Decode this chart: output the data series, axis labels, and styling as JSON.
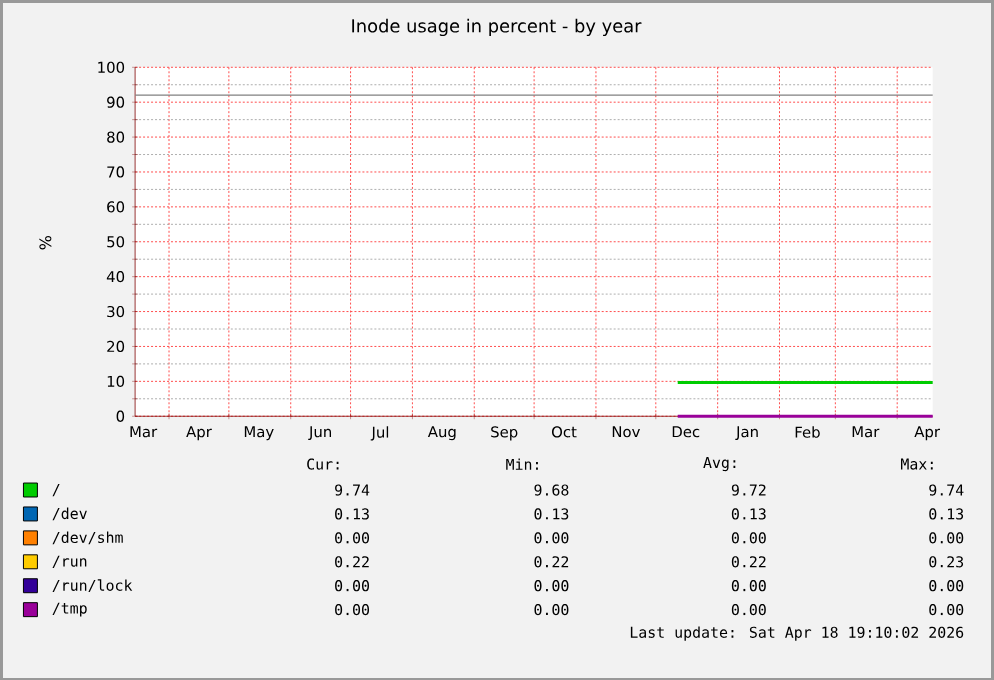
{
  "chart_data": {
    "type": "line",
    "title": "Inode usage in percent - by year",
    "ylabel": "%",
    "xlim": [
      "2025-03-15",
      "2026-04-18T19:10"
    ],
    "xticks": [
      {
        "value": "2025-03-19",
        "label": "Mar"
      },
      {
        "value": "2025-04-16",
        "label": "Apr"
      },
      {
        "value": "2025-05-16",
        "label": "May"
      },
      {
        "value": "2025-06-16",
        "label": "Jun"
      },
      {
        "value": "2025-07-16",
        "label": "Jul"
      },
      {
        "value": "2025-08-16",
        "label": "Aug"
      },
      {
        "value": "2025-09-16",
        "label": "Sep"
      },
      {
        "value": "2025-10-16",
        "label": "Oct"
      },
      {
        "value": "2025-11-16",
        "label": "Nov"
      },
      {
        "value": "2025-12-16",
        "label": "Dec"
      },
      {
        "value": "2026-01-16",
        "label": "Jan"
      },
      {
        "value": "2026-02-15",
        "label": "Feb"
      },
      {
        "value": "2026-03-16",
        "label": "Mar"
      },
      {
        "value": "2026-04-16",
        "label": "Apr"
      },
      {
        "value": "2025-04-01",
        "label": null
      },
      {
        "value": "2025-05-01",
        "label": null
      },
      {
        "value": "2025-06-01",
        "label": null
      },
      {
        "value": "2025-07-01",
        "label": null
      },
      {
        "value": "2025-08-01",
        "label": null
      },
      {
        "value": "2025-09-01",
        "label": null
      },
      {
        "value": "2025-10-01",
        "label": null
      },
      {
        "value": "2025-11-01",
        "label": null
      },
      {
        "value": "2025-12-01",
        "label": null
      },
      {
        "value": "2026-01-01",
        "label": null
      },
      {
        "value": "2026-02-01",
        "label": null
      },
      {
        "value": "2026-03-01",
        "label": null
      },
      {
        "value": "2026-04-01",
        "label": null
      }
    ],
    "ylim": [
      0,
      100
    ],
    "yticks": [
      0,
      10,
      20,
      30,
      40,
      50,
      60,
      70,
      80,
      90,
      100
    ],
    "grid": true,
    "legend": "bottom",
    "x": [
      "2025-12-12",
      "2026-04-18T19:10"
    ],
    "series": [
      {
        "name": "/",
        "color": "#00cc00",
        "values": [
          9.7,
          9.7
        ]
      },
      {
        "name": "/dev",
        "color": "#0066b3",
        "values": [
          null,
          null
        ]
      },
      {
        "name": "/dev/shm",
        "color": "#ff8000",
        "values": [
          null,
          null
        ]
      },
      {
        "name": "/run",
        "color": "#ffcc00",
        "values": [
          null,
          null
        ]
      },
      {
        "name": "/run/lock",
        "color": "#330099",
        "values": [
          null,
          null
        ]
      },
      {
        "name": "/tmp",
        "color": "#990099",
        "values": [
          0,
          0
        ]
      }
    ],
    "ref_lines": [
      {
        "axis": "y",
        "value": 92,
        "color": "#808080"
      }
    ],
    "annotations": [
      "Cur:",
      "Min:",
      "Avg:",
      "Max:",
      "9.74",
      "9.68",
      "9.72",
      "9.74",
      "0.13",
      "0.13",
      "0.13",
      "0.13",
      "0.00",
      "0.00",
      "0.00",
      "0.00",
      "0.22",
      "0.22",
      "0.22",
      "0.23",
      "0.00",
      "0.00",
      "0.00",
      "0.00",
      "0.00",
      "0.00",
      "0.00",
      "0.00",
      "Last update: Sat Apr 18 19:10:02 2026"
    ]
  }
}
